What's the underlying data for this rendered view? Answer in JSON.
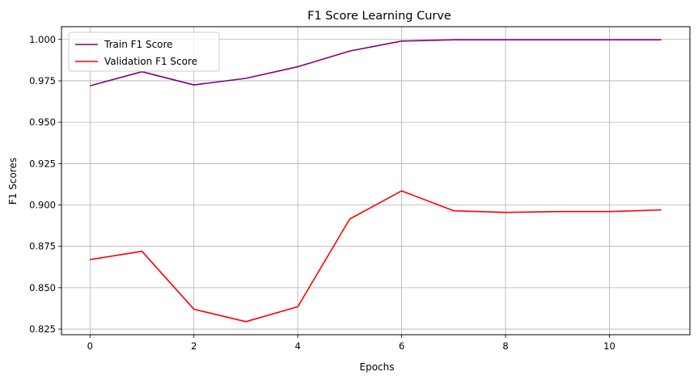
{
  "chart_data": {
    "type": "line",
    "title": "F1 Score Learning Curve",
    "xlabel": "Epochs",
    "ylabel": "F1 Scores",
    "xlim": [
      -0.55,
      11.55
    ],
    "ylim": [
      0.8216,
      1.0077
    ],
    "x_ticks": [
      0,
      2,
      4,
      6,
      8,
      10
    ],
    "y_ticks": [
      0.825,
      0.85,
      0.875,
      0.9,
      0.925,
      0.95,
      0.975,
      1.0
    ],
    "x_tick_labels": [
      "0",
      "2",
      "4",
      "6",
      "8",
      "10"
    ],
    "y_tick_labels": [
      "0.825",
      "0.850",
      "0.875",
      "0.900",
      "0.925",
      "0.950",
      "0.975",
      "1.000"
    ],
    "grid": true,
    "legend_position": "top-left",
    "x": [
      0,
      1,
      2,
      3,
      4,
      5,
      6,
      7,
      8,
      9,
      10,
      11
    ],
    "series": [
      {
        "name": "Train F1 Score",
        "color": "#800080",
        "values": [
          0.972,
          0.9805,
          0.9725,
          0.9765,
          0.9835,
          0.993,
          0.999,
          0.9998,
          0.9998,
          0.9998,
          0.9998,
          0.9998
        ]
      },
      {
        "name": "Validation F1 Score",
        "color": "#ff0000",
        "values": [
          0.867,
          0.872,
          0.837,
          0.8295,
          0.8385,
          0.8915,
          0.9085,
          0.8965,
          0.8955,
          0.896,
          0.896,
          0.897
        ]
      }
    ]
  }
}
